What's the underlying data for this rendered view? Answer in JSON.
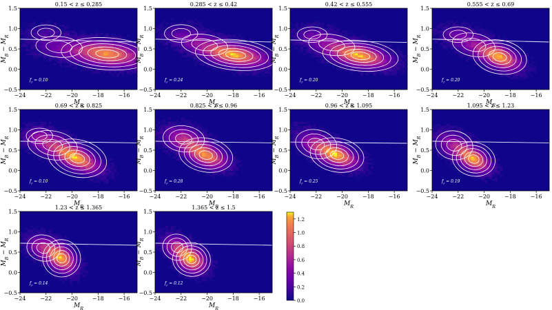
{
  "figure": {
    "shared": {
      "xlabel": "M_R",
      "ylabel": "M_B − M_R",
      "xlim": [
        -24,
        -15
      ],
      "ylim": [
        -0.5,
        1.5
      ],
      "xticks": [
        -24,
        -22,
        -20,
        -18,
        -16
      ],
      "yticks": [
        -0.5,
        0.0,
        0.5,
        1.0,
        1.5
      ],
      "type": "heatmap",
      "colors": {
        "background": "#10048a",
        "contour": "#ffffff",
        "divider": "#e8e8ff"
      }
    },
    "colorbar": {
      "min": 0.0,
      "max": 1.3,
      "ticks": [
        0.0,
        0.2,
        0.4,
        0.6,
        0.8,
        1.0,
        1.2
      ],
      "tick_labels": [
        "0.0",
        "0.2",
        "0.4",
        "0.6",
        "0.8",
        "1.0",
        "1.2"
      ],
      "colormap": "plasma"
    }
  },
  "chart_data": [
    {
      "type": "heatmap",
      "title": "0.15 < z ≤ 0.285",
      "annotation": "f_r = 0.10",
      "divider": {
        "x": [
          -24,
          -15
        ],
        "y": [
          0.74,
          0.67
        ]
      },
      "blobs": [
        {
          "cx": -17.3,
          "cy": 0.38,
          "sx": 1.7,
          "sy": 0.19,
          "rho": -0.3,
          "amp": 1.0
        },
        {
          "cx": -21.0,
          "cy": 0.55,
          "sx": 1.4,
          "sy": 0.2,
          "rho": -0.3,
          "amp": 0.25
        },
        {
          "cx": -22.0,
          "cy": 0.9,
          "sx": 0.9,
          "sy": 0.15,
          "rho": 0,
          "amp": 0.12
        }
      ]
    },
    {
      "type": "heatmap",
      "title": "0.285 < z ≤ 0.42",
      "annotation": "f_r = 0.24",
      "divider": {
        "x": [
          -24,
          -15
        ],
        "y": [
          0.74,
          0.67
        ]
      },
      "blobs": [
        {
          "cx": -17.8,
          "cy": 0.35,
          "sx": 1.5,
          "sy": 0.18,
          "rho": -0.4,
          "amp": 1.0
        },
        {
          "cx": -20.2,
          "cy": 0.6,
          "sx": 1.4,
          "sy": 0.2,
          "rho": -0.5,
          "amp": 0.35
        },
        {
          "cx": -22.0,
          "cy": 0.88,
          "sx": 1.0,
          "sy": 0.17,
          "rho": 0,
          "amp": 0.15
        }
      ]
    },
    {
      "type": "heatmap",
      "title": "0.42 < z ≤ 0.555",
      "annotation": "f_r = 0.20",
      "divider": {
        "x": [
          -24,
          -15
        ],
        "y": [
          0.72,
          0.66
        ]
      },
      "blobs": [
        {
          "cx": -18.6,
          "cy": 0.33,
          "sx": 1.4,
          "sy": 0.18,
          "rho": -0.4,
          "amp": 1.0
        },
        {
          "cx": -20.8,
          "cy": 0.6,
          "sx": 1.4,
          "sy": 0.2,
          "rho": -0.5,
          "amp": 0.35
        },
        {
          "cx": -22.3,
          "cy": 0.85,
          "sx": 0.9,
          "sy": 0.15,
          "rho": 0,
          "amp": 0.15
        }
      ]
    },
    {
      "type": "heatmap",
      "title": "0.555 < z ≤ 0.69",
      "annotation": "f_r = 0.20",
      "divider": {
        "x": [
          -24,
          -15
        ],
        "y": [
          0.74,
          0.67
        ]
      },
      "blobs": [
        {
          "cx": -18.8,
          "cy": 0.3,
          "sx": 1.0,
          "sy": 0.2,
          "rho": -0.5,
          "amp": 1.0
        },
        {
          "cx": -20.8,
          "cy": 0.6,
          "sx": 1.3,
          "sy": 0.22,
          "rho": -0.6,
          "amp": 0.35
        },
        {
          "cx": -22.0,
          "cy": 0.85,
          "sx": 0.9,
          "sy": 0.15,
          "rho": 0,
          "amp": 0.15
        }
      ]
    },
    {
      "type": "heatmap",
      "title": "0.69 < z ≤ 0.825",
      "annotation": "f_r = 0.10",
      "divider": {
        "x": [
          -24,
          -15
        ],
        "y": [
          0.72,
          0.68
        ]
      },
      "blobs": [
        {
          "cx": -19.6,
          "cy": 0.3,
          "sx": 1.1,
          "sy": 0.22,
          "rho": -0.6,
          "amp": 1.0
        },
        {
          "cx": -21.5,
          "cy": 0.62,
          "sx": 1.2,
          "sy": 0.22,
          "rho": -0.5,
          "amp": 0.45
        },
        {
          "cx": -22.5,
          "cy": 0.85,
          "sx": 0.8,
          "sy": 0.15,
          "rho": 0,
          "amp": 0.2
        }
      ]
    },
    {
      "type": "heatmap",
      "title": "0.825 < z ≤ 0.96",
      "annotation": "f_r = 0.28",
      "divider": {
        "x": [
          -24,
          -15
        ],
        "y": [
          0.72,
          0.68
        ]
      },
      "blobs": [
        {
          "cx": -20.1,
          "cy": 0.38,
          "sx": 1.0,
          "sy": 0.2,
          "rho": -0.5,
          "amp": 1.0
        },
        {
          "cx": -21.8,
          "cy": 0.78,
          "sx": 1.0,
          "sy": 0.2,
          "rho": -0.3,
          "amp": 0.55
        }
      ]
    },
    {
      "type": "heatmap",
      "title": "0.96 < z ≤ 1.095",
      "annotation": "f_r = 0.25",
      "divider": {
        "x": [
          -24,
          -15
        ],
        "y": [
          0.7,
          0.67
        ]
      },
      "blobs": [
        {
          "cx": -20.4,
          "cy": 0.38,
          "sx": 1.0,
          "sy": 0.2,
          "rho": -0.5,
          "amp": 1.0
        },
        {
          "cx": -22.0,
          "cy": 0.65,
          "sx": 1.0,
          "sy": 0.22,
          "rho": -0.5,
          "amp": 0.45
        }
      ]
    },
    {
      "type": "heatmap",
      "title": "1.095 < z ≤ 1.23",
      "annotation": "f_r = 0.19",
      "divider": {
        "x": [
          -24,
          -15
        ],
        "y": [
          0.72,
          0.68
        ]
      },
      "blobs": [
        {
          "cx": -20.8,
          "cy": 0.28,
          "sx": 0.8,
          "sy": 0.2,
          "rho": -0.5,
          "amp": 1.0
        },
        {
          "cx": -22.3,
          "cy": 0.62,
          "sx": 0.9,
          "sy": 0.22,
          "rho": -0.4,
          "amp": 0.45
        }
      ]
    },
    {
      "type": "heatmap",
      "title": "1.23 < z ≤ 1.365",
      "annotation": "f_r = 0.14",
      "divider": {
        "x": [
          -24,
          -15
        ],
        "y": [
          0.72,
          0.67
        ]
      },
      "blobs": [
        {
          "cx": -20.8,
          "cy": 0.35,
          "sx": 0.7,
          "sy": 0.22,
          "rho": -0.4,
          "amp": 1.0
        },
        {
          "cx": -22.2,
          "cy": 0.6,
          "sx": 0.8,
          "sy": 0.2,
          "rho": -0.4,
          "amp": 0.5
        }
      ]
    },
    {
      "type": "heatmap",
      "title": "1.365 < z ≤ 1.5",
      "annotation": "f_r = 0.12",
      "divider": {
        "x": [
          -24,
          -15
        ],
        "y": [
          0.72,
          0.67
        ]
      },
      "blobs": [
        {
          "cx": -21.2,
          "cy": 0.32,
          "sx": 0.7,
          "sy": 0.2,
          "rho": -0.3,
          "amp": 1.0
        },
        {
          "cx": -22.3,
          "cy": 0.62,
          "sx": 0.7,
          "sy": 0.2,
          "rho": -0.4,
          "amp": 0.55
        }
      ]
    }
  ]
}
